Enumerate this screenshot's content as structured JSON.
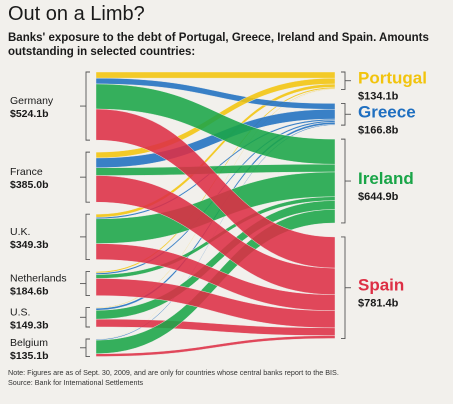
{
  "title": "Out on a Limb?",
  "subtitle": "Banks' exposure to the debt of Portugal, Greece, Ireland and Spain. Amounts outstanding in selected countries:",
  "note": "Note: Figures are as of Sept. 30, 2009, and are only for countries whose central banks report to the BIS.",
  "source": "Source: Bank for International Settlements",
  "chart_data": {
    "type": "sankey",
    "units": "billions of dollars",
    "sources": [
      {
        "name": "Germany",
        "total_label": "$524.1b",
        "value": 524.1
      },
      {
        "name": "France",
        "total_label": "$385.0b",
        "value": 385.0
      },
      {
        "name": "U.K.",
        "total_label": "$349.3b",
        "value": 349.3
      },
      {
        "name": "Netherlands",
        "total_label": "$184.6b",
        "value": 184.6
      },
      {
        "name": "U.S.",
        "total_label": "$149.3b",
        "value": 149.3
      },
      {
        "name": "Belgium",
        "total_label": "$135.1b",
        "value": 135.1
      }
    ],
    "targets": [
      {
        "name": "Portugal",
        "total_label": "$134.1b",
        "value": 134.1,
        "color": "#f2c40d"
      },
      {
        "name": "Greece",
        "total_label": "$166.8b",
        "value": 166.8,
        "color": "#1f6fc0"
      },
      {
        "name": "Ireland",
        "total_label": "$644.9b",
        "value": 644.9,
        "color": "#1aa548"
      },
      {
        "name": "Spain",
        "total_label": "$781.4b",
        "value": 781.4,
        "color": "#dd2f45"
      }
    ],
    "flows": [
      {
        "from": "Germany",
        "to": "Portugal",
        "value": 47
      },
      {
        "from": "Germany",
        "to": "Greece",
        "value": 45
      },
      {
        "from": "Germany",
        "to": "Ireland",
        "value": 193
      },
      {
        "from": "Germany",
        "to": "Spain",
        "value": 239
      },
      {
        "from": "France",
        "to": "Portugal",
        "value": 45
      },
      {
        "from": "France",
        "to": "Greece",
        "value": 75
      },
      {
        "from": "France",
        "to": "Ireland",
        "value": 60
      },
      {
        "from": "France",
        "to": "Spain",
        "value": 205
      },
      {
        "from": "U.K.",
        "to": "Portugal",
        "value": 24
      },
      {
        "from": "U.K.",
        "to": "Greece",
        "value": 12
      },
      {
        "from": "U.K.",
        "to": "Ireland",
        "value": 190
      },
      {
        "from": "U.K.",
        "to": "Spain",
        "value": 123
      },
      {
        "from": "Netherlands",
        "to": "Portugal",
        "value": 11
      },
      {
        "from": "Netherlands",
        "to": "Greece",
        "value": 12
      },
      {
        "from": "Netherlands",
        "to": "Ireland",
        "value": 30
      },
      {
        "from": "Netherlands",
        "to": "Spain",
        "value": 132
      },
      {
        "from": "U.S.",
        "to": "Portugal",
        "value": 5
      },
      {
        "from": "U.S.",
        "to": "Greece",
        "value": 16
      },
      {
        "from": "U.S.",
        "to": "Ireland",
        "value": 68
      },
      {
        "from": "U.S.",
        "to": "Spain",
        "value": 60
      },
      {
        "from": "Belgium",
        "to": "Portugal",
        "value": 2
      },
      {
        "from": "Belgium",
        "to": "Greece",
        "value": 7
      },
      {
        "from": "Belgium",
        "to": "Ireland",
        "value": 104
      },
      {
        "from": "Belgium",
        "to": "Spain",
        "value": 22
      }
    ]
  }
}
